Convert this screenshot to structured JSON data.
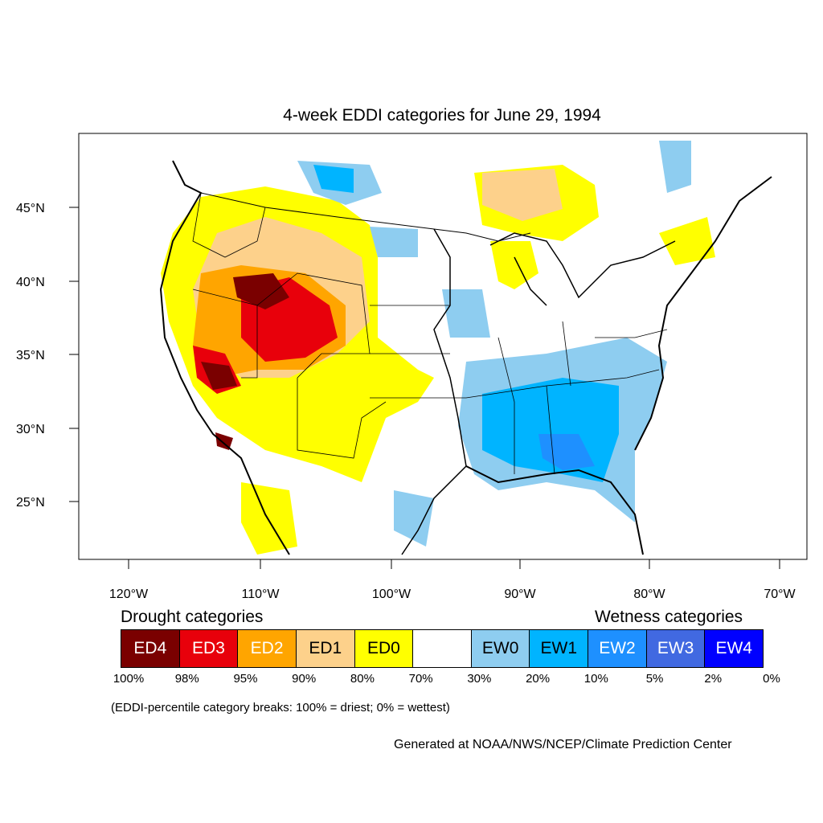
{
  "title": "4-week EDDI categories for June 29, 1994",
  "map": {
    "lat_labels": [
      "45°N",
      "40°N",
      "35°N",
      "30°N",
      "25°N"
    ],
    "lon_labels": [
      "120°W",
      "110°W",
      "100°W",
      "90°W",
      "80°W",
      "70°W"
    ]
  },
  "legend": {
    "drought_title": "Drought categories",
    "wetness_title": "Wetness categories",
    "categories": [
      {
        "label": "ED4",
        "color": "#7a0000",
        "text_color": "#ffffff"
      },
      {
        "label": "ED3",
        "color": "#e8000b",
        "text_color": "#ffffff"
      },
      {
        "label": "ED2",
        "color": "#ffa500",
        "text_color": "#ffffff"
      },
      {
        "label": "ED1",
        "color": "#fdd18b",
        "text_color": "#000000"
      },
      {
        "label": "ED0",
        "color": "#ffff00",
        "text_color": "#000000"
      },
      {
        "label": "",
        "color": "#ffffff",
        "text_color": "#000000"
      },
      {
        "label": "EW0",
        "color": "#8ecdf0",
        "text_color": "#000000"
      },
      {
        "label": "EW1",
        "color": "#00b4ff",
        "text_color": "#000000"
      },
      {
        "label": "EW2",
        "color": "#1e90ff",
        "text_color": "#ffffff"
      },
      {
        "label": "EW3",
        "color": "#4169e1",
        "text_color": "#ffffff"
      },
      {
        "label": "EW4",
        "color": "#0000ff",
        "text_color": "#ffffff"
      }
    ],
    "percentiles": [
      "100%",
      "98%",
      "95%",
      "90%",
      "80%",
      "70%",
      "30%",
      "20%",
      "10%",
      "5%",
      "2%",
      "0%"
    ]
  },
  "note": "(EDDI-percentile category breaks: 100% = driest; 0% = wettest)",
  "credit": "Generated at NOAA/NWS/NCEP/Climate Prediction Center"
}
